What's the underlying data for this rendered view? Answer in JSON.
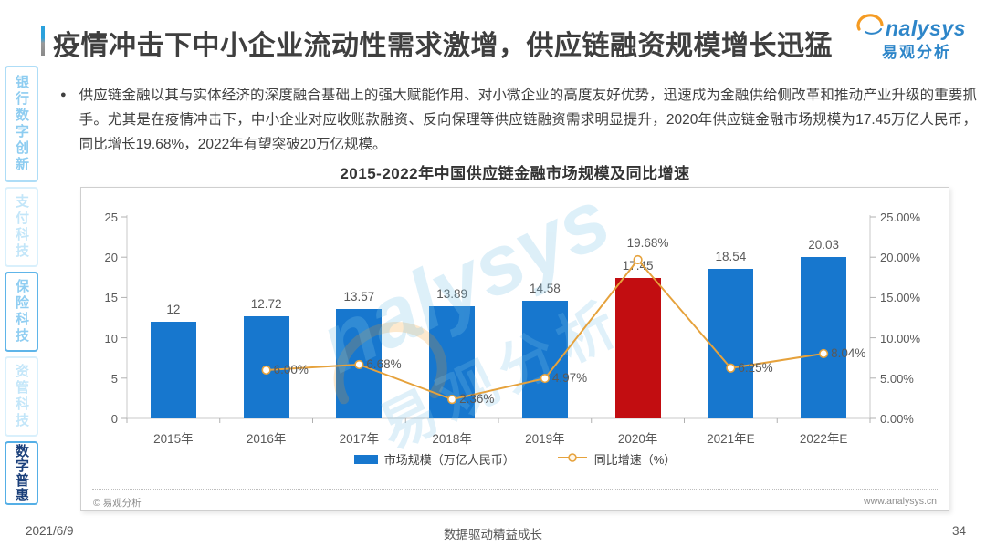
{
  "page": {
    "title": "疫情冲击下中小企业流动性需求激增，供应链融资规模增长迅猛",
    "date": "2021/6/9",
    "footer_slogan": "数据驱动精益成长",
    "page_number": "34"
  },
  "logo": {
    "brand": "nalysys",
    "brand_cn": "易观分析"
  },
  "sidebar": {
    "items": [
      {
        "label": "银行数字创新",
        "state": "normal"
      },
      {
        "label": "支付科技",
        "state": "faint"
      },
      {
        "label": "保险科技",
        "state": "highlight"
      },
      {
        "label": "资管科技",
        "state": "faint"
      },
      {
        "label": "数字普惠",
        "state": "active"
      }
    ]
  },
  "bullet": {
    "text": "供应链金融以其与实体经济的深度融合基础上的强大赋能作用、对小微企业的高度友好优势，迅速成为金融供给侧改革和推动产业升级的重要抓手。尤其是在疫情冲击下，中小企业对应收账款融资、反向保理等供应链融资需求明显提升，2020年供应链金融市场规模为17.45万亿人民币，同比增长19.68%，2022年有望突破20万亿规模。"
  },
  "chart_data": {
    "type": "bar+line",
    "title": "2015-2022年中国供应链金融市场规模及同比增速",
    "categories": [
      "2015年",
      "2016年",
      "2017年",
      "2018年",
      "2019年",
      "2020年",
      "2021年E",
      "2022年E"
    ],
    "series": [
      {
        "name": "市场规模（万亿人民币）",
        "type": "bar",
        "values": [
          12,
          12.72,
          13.57,
          13.89,
          14.58,
          17.45,
          18.54,
          20.03
        ],
        "labels": [
          "12",
          "12.72",
          "13.57",
          "13.89",
          "14.58",
          "17.45",
          "18.54",
          "20.03"
        ]
      },
      {
        "name": "同比增速（%）",
        "type": "line",
        "values": [
          null,
          6.0,
          6.68,
          2.36,
          4.97,
          19.68,
          6.25,
          8.04
        ],
        "labels": [
          null,
          "6.00%",
          "6.68%",
          "2.36%",
          "4.97%",
          "19.68%",
          "6.25%",
          "8.04%"
        ]
      }
    ],
    "left_axis": {
      "ticks": [
        "0",
        "5",
        "10",
        "15",
        "20",
        "25"
      ],
      "min": 0,
      "max": 25
    },
    "right_axis": {
      "ticks": [
        "0.00%",
        "5.00%",
        "10.00%",
        "15.00%",
        "20.00%",
        "25.00%"
      ],
      "min": 0,
      "max": 25
    },
    "highlight_index": 5,
    "colors": {
      "bar": "#1777CE",
      "bar_highlight": "#C20D11",
      "line": "#E6A23C"
    },
    "legend": [
      "市场规模（万亿人民币）",
      "同比增速（%）"
    ],
    "grid": false,
    "legend_position": "bottom",
    "copyright": "© 易观分析",
    "website": "www.analysys.cn"
  }
}
